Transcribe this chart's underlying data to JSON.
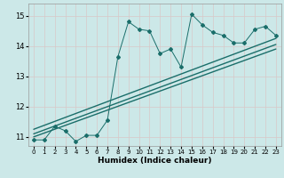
{
  "xlabel": "Humidex (Indice chaleur)",
  "ylabel": "",
  "bg_color": "#cce8e8",
  "line_color": "#1a6e6a",
  "grid_color": "#b8d8d8",
  "xlim": [
    -0.5,
    23.5
  ],
  "ylim": [
    10.7,
    15.4
  ],
  "xticks": [
    0,
    1,
    2,
    3,
    4,
    5,
    6,
    7,
    8,
    9,
    10,
    11,
    12,
    13,
    14,
    15,
    16,
    17,
    18,
    19,
    20,
    21,
    22,
    23
  ],
  "yticks": [
    11,
    12,
    13,
    14,
    15
  ],
  "data_x": [
    0,
    1,
    2,
    3,
    4,
    5,
    6,
    7,
    8,
    9,
    10,
    11,
    12,
    13,
    14,
    15,
    16,
    17,
    18,
    19,
    20,
    21,
    22,
    23
  ],
  "data_y": [
    10.9,
    10.9,
    11.35,
    11.2,
    10.85,
    11.05,
    11.05,
    11.55,
    13.65,
    14.8,
    14.55,
    14.5,
    13.75,
    13.9,
    13.3,
    15.05,
    14.7,
    14.45,
    14.35,
    14.1,
    14.1,
    14.55,
    14.65,
    14.35
  ],
  "reg_lines": [
    {
      "x0": 0,
      "x1": 23,
      "y0": 11.0,
      "y1": 13.9
    },
    {
      "x0": 0,
      "x1": 23,
      "y0": 11.1,
      "y1": 14.05
    },
    {
      "x0": 0,
      "x1": 23,
      "y0": 11.25,
      "y1": 14.25
    }
  ]
}
